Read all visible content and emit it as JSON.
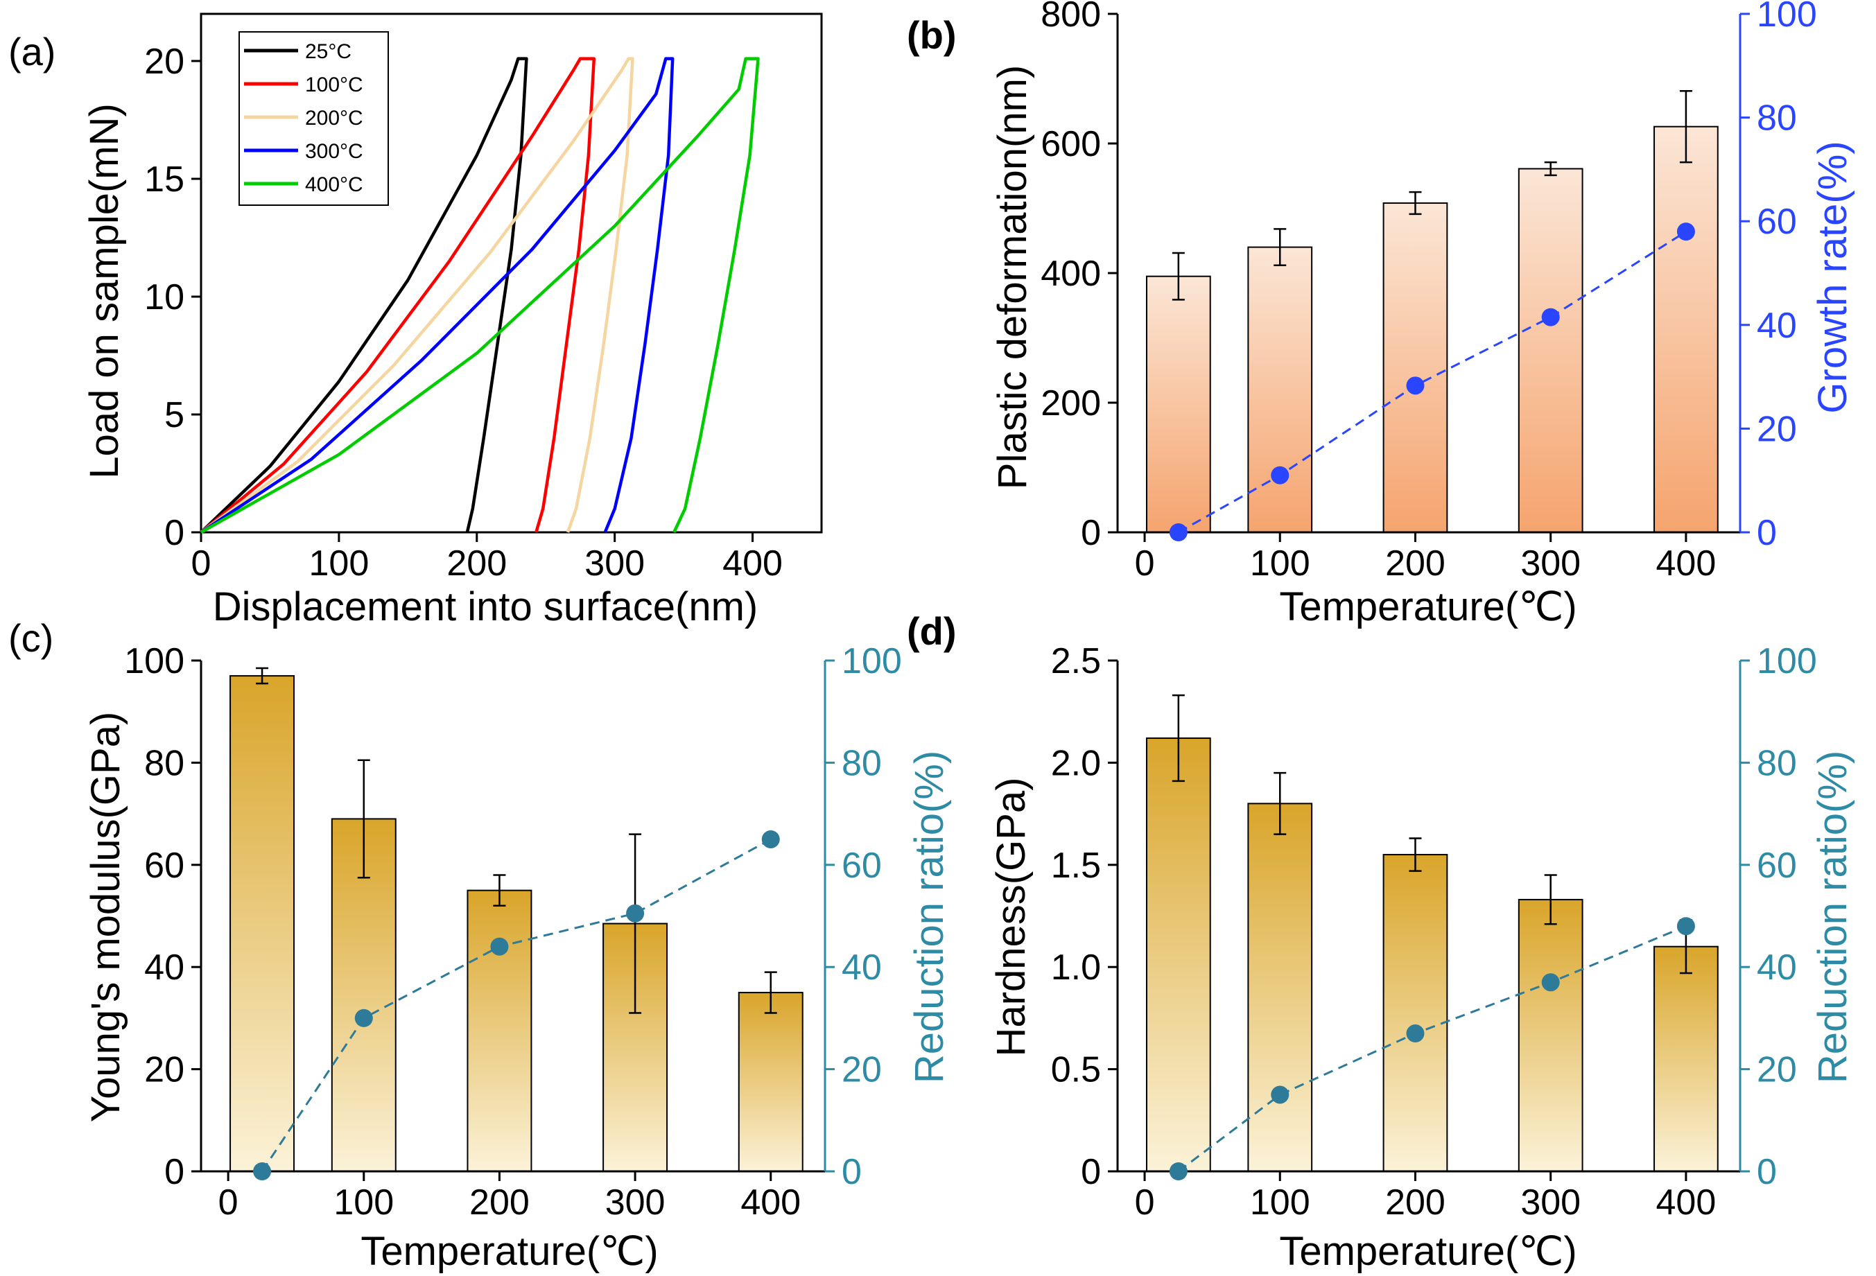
{
  "chart_data": [
    {
      "panel": "(a)",
      "type": "line",
      "xlabel": "Displacement into surface(nm)",
      "ylabel": "Load on sample(mN)",
      "xlim": [
        0,
        450
      ],
      "ylim": [
        0,
        22
      ],
      "x_ticks": [
        "0",
        "100",
        "200",
        "300",
        "400"
      ],
      "y_ticks": [
        "0",
        "5",
        "10",
        "15",
        "20"
      ],
      "colors": {
        "axis": "#000000"
      },
      "series": [
        {
          "name": "25°C",
          "color": "#000000",
          "loading": [
            [
              0,
              0
            ],
            [
              50,
              2.8
            ],
            [
              100,
              6.4
            ],
            [
              150,
              10.7
            ],
            [
              200,
              16.0
            ],
            [
              225,
              19.2
            ],
            [
              230,
              20.1
            ]
          ],
          "hold": [
            [
              230,
              20.1
            ],
            [
              236,
              20.1
            ]
          ],
          "unloading": [
            [
              236,
              20.1
            ],
            [
              232,
              16
            ],
            [
              225,
              12
            ],
            [
              215,
              8
            ],
            [
              205,
              4
            ],
            [
              197,
              1
            ],
            [
              193,
              0
            ]
          ]
        },
        {
          "name": "100°C",
          "color": "#ff0000",
          "loading": [
            [
              0,
              0
            ],
            [
              60,
              2.9
            ],
            [
              120,
              6.8
            ],
            [
              180,
              11.5
            ],
            [
              240,
              16.8
            ],
            [
              270,
              19.6
            ],
            [
              275,
              20.1
            ]
          ],
          "hold": [
            [
              275,
              20.1
            ],
            [
              285,
              20.1
            ]
          ],
          "unloading": [
            [
              285,
              20.1
            ],
            [
              281,
              16
            ],
            [
              274,
              12
            ],
            [
              265,
              8
            ],
            [
              256,
              4
            ],
            [
              248,
              1
            ],
            [
              243,
              0
            ]
          ]
        },
        {
          "name": "200°C",
          "color": "#f5d5a0",
          "loading": [
            [
              0,
              0
            ],
            [
              70,
              3.0
            ],
            [
              140,
              7.1
            ],
            [
              210,
              11.9
            ],
            [
              270,
              16.6
            ],
            [
              305,
              19.6
            ],
            [
              310,
              20.1
            ]
          ],
          "hold": [
            [
              310,
              20.1
            ],
            [
              313,
              20.1
            ]
          ],
          "unloading": [
            [
              313,
              20.1
            ],
            [
              309,
              16
            ],
            [
              301,
              12
            ],
            [
              292,
              8
            ],
            [
              282,
              4
            ],
            [
              272,
              1
            ],
            [
              266,
              0
            ]
          ]
        },
        {
          "name": "300°C",
          "color": "#0000ff",
          "loading": [
            [
              0,
              0
            ],
            [
              80,
              3.1
            ],
            [
              160,
              7.3
            ],
            [
              240,
              12.0
            ],
            [
              300,
              16.2
            ],
            [
              330,
              18.6
            ],
            [
              337,
              20.1
            ]
          ],
          "hold": [
            [
              337,
              20.1
            ],
            [
              342,
              20.1
            ]
          ],
          "unloading": [
            [
              342,
              20.1
            ],
            [
              339,
              16
            ],
            [
              331,
              12
            ],
            [
              322,
              8
            ],
            [
              312,
              4
            ],
            [
              300,
              1
            ],
            [
              293,
              0
            ]
          ]
        },
        {
          "name": "400°C",
          "color": "#00cc00",
          "loading": [
            [
              0,
              0
            ],
            [
              100,
              3.3
            ],
            [
              200,
              7.6
            ],
            [
              300,
              13.0
            ],
            [
              360,
              16.8
            ],
            [
              390,
              18.8
            ],
            [
              395,
              20.1
            ]
          ],
          "hold": [
            [
              395,
              20.1
            ],
            [
              404,
              20.1
            ]
          ],
          "unloading": [
            [
              404,
              20.1
            ],
            [
              398,
              16
            ],
            [
              387,
              12
            ],
            [
              375,
              8
            ],
            [
              362,
              4
            ],
            [
              351,
              1
            ],
            [
              343,
              0
            ]
          ]
        }
      ]
    },
    {
      "panel": "(b)",
      "type": "bar",
      "categories": [
        "25",
        "100",
        "200",
        "300",
        "400"
      ],
      "x": [
        25,
        100,
        200,
        300,
        400
      ],
      "xlabel": "Temperature(℃)",
      "ylabel": "Plastic deformation(nm)",
      "ylabel_right": "Growth rate(%)",
      "xlim": [
        -20,
        440
      ],
      "ylim": [
        0,
        800
      ],
      "ylim_right": [
        0,
        100
      ],
      "x_ticks": [
        "0",
        "100",
        "200",
        "300",
        "400"
      ],
      "y_ticks": [
        "0",
        "200",
        "400",
        "600",
        "800"
      ],
      "y_ticks_right": [
        "0",
        "20",
        "40",
        "60",
        "80",
        "100"
      ],
      "values": [
        395,
        440,
        508,
        561,
        626
      ],
      "errors": [
        36,
        28,
        17,
        10,
        55
      ],
      "right_series": {
        "name": "Growth rate",
        "values": [
          0,
          11,
          28.3,
          41.5,
          58
        ],
        "color": "#2a45ff"
      },
      "bar_gradient": {
        "top": "#fbe6d6",
        "bottom": "#f5a46e"
      },
      "colors": {
        "right_axis": "#2a45ff"
      }
    },
    {
      "panel": "(c)",
      "type": "bar",
      "categories": [
        "25",
        "100",
        "200",
        "300",
        "400"
      ],
      "x": [
        25,
        100,
        200,
        300,
        400
      ],
      "xlabel": "Temperature(℃)",
      "ylabel": "Young's modulus(GPa)",
      "ylabel_right": "Reduction ratio(%)",
      "xlim": [
        -20,
        440
      ],
      "ylim": [
        0,
        100
      ],
      "ylim_right": [
        0,
        100
      ],
      "x_ticks": [
        "0",
        "100",
        "200",
        "300",
        "400"
      ],
      "y_ticks": [
        "0",
        "20",
        "40",
        "60",
        "80",
        "100"
      ],
      "y_ticks_right": [
        "0",
        "20",
        "40",
        "60",
        "80",
        "100"
      ],
      "values": [
        97,
        69,
        55,
        48.5,
        35
      ],
      "errors": [
        1.5,
        11.5,
        3,
        17.5,
        4
      ],
      "right_series": {
        "name": "Reduction ratio",
        "values": [
          0,
          30,
          44,
          50.5,
          65
        ],
        "color": "#2e7a99"
      },
      "bar_gradient": {
        "top": "#d9a52a",
        "bottom": "#fbf2d8"
      },
      "colors": {
        "right_axis": "#2e8ba5"
      }
    },
    {
      "panel": "(d)",
      "type": "bar",
      "categories": [
        "25",
        "100",
        "200",
        "300",
        "400"
      ],
      "x": [
        25,
        100,
        200,
        300,
        400
      ],
      "xlabel": "Temperature(℃)",
      "ylabel": "Hardness(GPa)",
      "ylabel_right": "Reduction ratio(%)",
      "xlim": [
        -20,
        440
      ],
      "ylim": [
        0,
        2.5
      ],
      "ylim_right": [
        0,
        100
      ],
      "x_ticks": [
        "0",
        "100",
        "200",
        "300",
        "400"
      ],
      "y_ticks": [
        "0",
        "0.5",
        "1.0",
        "1.5",
        "2.0",
        "2.5"
      ],
      "y_ticks_right": [
        "0",
        "20",
        "40",
        "60",
        "80",
        "100"
      ],
      "values": [
        2.12,
        1.8,
        1.55,
        1.33,
        1.1
      ],
      "errors": [
        0.21,
        0.15,
        0.08,
        0.12,
        0.13
      ],
      "right_series": {
        "name": "Reduction ratio",
        "values": [
          0,
          15,
          27,
          37,
          48
        ],
        "color": "#2e7a99"
      },
      "bar_gradient": {
        "top": "#d9a52a",
        "bottom": "#fbf2d8"
      },
      "colors": {
        "right_axis": "#2e8ba5"
      }
    }
  ]
}
